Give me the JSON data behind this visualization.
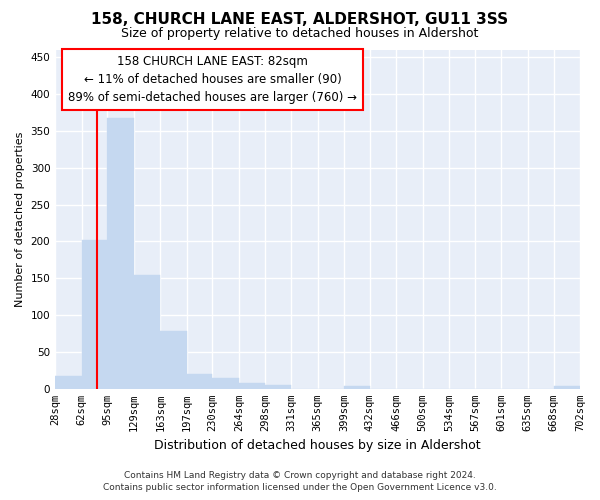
{
  "title": "158, CHURCH LANE EAST, ALDERSHOT, GU11 3SS",
  "subtitle": "Size of property relative to detached houses in Aldershot",
  "xlabel": "Distribution of detached houses by size in Aldershot",
  "ylabel": "Number of detached properties",
  "footer_line1": "Contains HM Land Registry data © Crown copyright and database right 2024.",
  "footer_line2": "Contains public sector information licensed under the Open Government Licence v3.0.",
  "annotation_title": "158 CHURCH LANE EAST: 82sqm",
  "annotation_line1": "← 11% of detached houses are smaller (90)",
  "annotation_line2": "89% of semi-detached houses are larger (760) →",
  "bin_edges": [
    28,
    62,
    95,
    129,
    163,
    197,
    230,
    264,
    298,
    331,
    365,
    399,
    432,
    466,
    500,
    534,
    567,
    601,
    635,
    668,
    702
  ],
  "bar_heights": [
    18,
    202,
    367,
    155,
    78,
    20,
    14,
    8,
    5,
    0,
    0,
    4,
    0,
    0,
    0,
    0,
    0,
    0,
    0,
    4
  ],
  "bar_color": "#c5d8f0",
  "bar_edge_color": "#c5d8f0",
  "red_line_x": 82,
  "ylim": [
    0,
    460
  ],
  "yticks": [
    0,
    50,
    100,
    150,
    200,
    250,
    300,
    350,
    400,
    450
  ],
  "fig_bg": "#ffffff",
  "plot_bg": "#e8eef8",
  "grid_color": "#ffffff",
  "title_fontsize": 11,
  "subtitle_fontsize": 9,
  "ylabel_fontsize": 8,
  "xlabel_fontsize": 9,
  "tick_fontsize": 7.5,
  "footer_fontsize": 6.5,
  "ann_fontsize": 8.5
}
